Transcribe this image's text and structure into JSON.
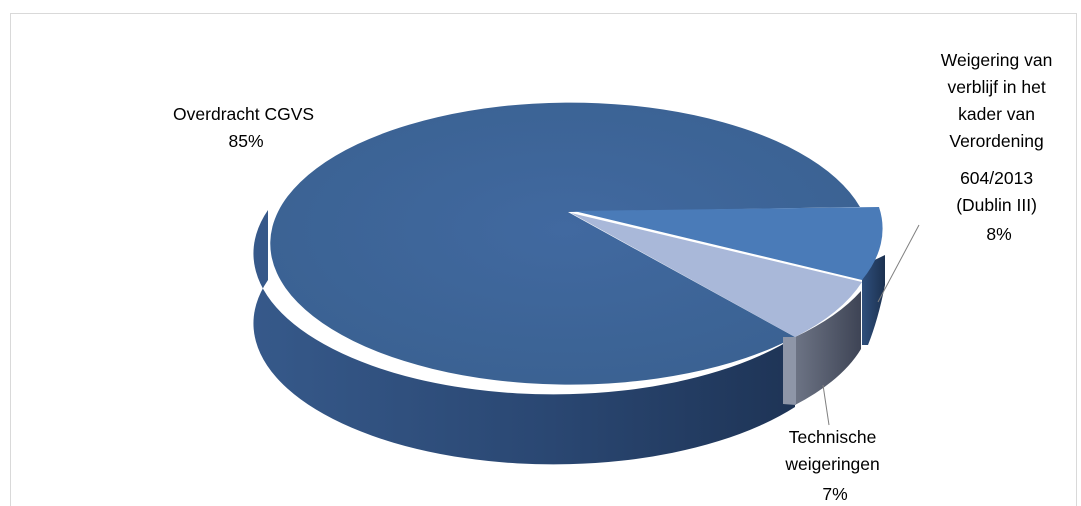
{
  "chart_data": {
    "type": "pie",
    "title": "",
    "slices": [
      {
        "label_lines": [
          "Overdracht CGVS"
        ],
        "pct_label": "85%",
        "value": 85,
        "color": "#3d6497"
      },
      {
        "label_lines": [
          "Weigering van",
          "verblijf in het",
          "kader van",
          "Verordening",
          "604/2013",
          "(Dublin III)"
        ],
        "pct_label": "8%",
        "value": 8,
        "color": "#4f81bd"
      },
      {
        "label_lines": [
          "Technische",
          "weigeringen"
        ],
        "pct_label": "7%",
        "value": 7,
        "color": "#a9b8d9"
      }
    ],
    "style": "3d-exploded"
  }
}
